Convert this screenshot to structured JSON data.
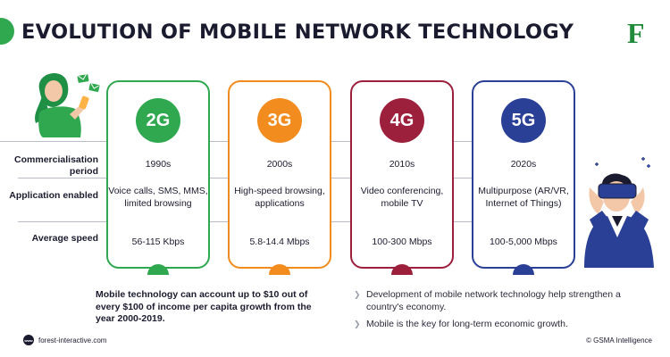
{
  "header": {
    "title": "EVOLUTION OF MOBILE NETWORK TECHNOLOGY",
    "logo_letter": "F"
  },
  "rows": [
    {
      "label": "Commercialisation period"
    },
    {
      "label": "Application enabled"
    },
    {
      "label": "Average speed"
    }
  ],
  "generations": [
    {
      "name": "2G",
      "color": "#2fa84f",
      "period": "1990s",
      "application": "Voice calls, SMS, MMS, limited browsing",
      "speed": "56-115 Kbps"
    },
    {
      "name": "3G",
      "color": "#f28c1e",
      "period": "2000s",
      "application": "High-speed browsing, applications",
      "speed": "5.8-14.4 Mbps"
    },
    {
      "name": "4G",
      "color": "#9c1f3c",
      "period": "2010s",
      "application": "Video conferencing, mobile TV",
      "speed": "100-300 Mbps"
    },
    {
      "name": "5G",
      "color": "#2a3f96",
      "period": "2020s",
      "application": "Multipurpose (AR/VR, Internet of Things)",
      "speed": "100-5,000 Mbps"
    }
  ],
  "stat": "Mobile technology can account up to $10 out of every $100 of income per capita growth from the year 2000-2019.",
  "bullets": [
    "Development of mobile network technology help strengthen a country's economy.",
    "Mobile is the key for long-term economic growth."
  ],
  "footer": {
    "website": "forest-interactive.com",
    "globe_text": "www",
    "source": "© GSMA Intelligence"
  },
  "icons": {
    "bullet": "chevron-right-icon",
    "website": "globe-icon",
    "left_illustration": "woman-with-phone-illustration",
    "right_illustration": "man-with-vr-headset-illustration"
  }
}
